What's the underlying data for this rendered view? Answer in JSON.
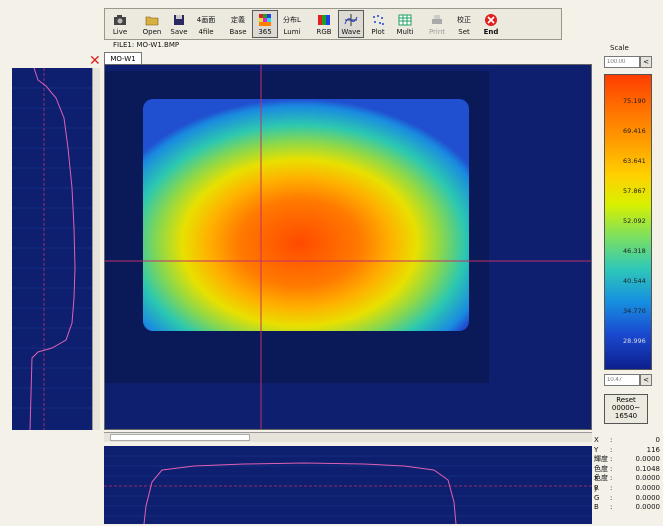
{
  "toolbar": {
    "buttons": [
      {
        "label": "Live",
        "icon": "camera-icon"
      },
      {
        "label": "Open",
        "icon": "folder-open-icon"
      },
      {
        "label": "Save",
        "icon": "floppy-disk-icon"
      },
      {
        "label_top": "4画面",
        "label": "4file",
        "icon": "four-screen-icon"
      },
      {
        "label_top": "定義",
        "label": "Base",
        "icon": "base-icon"
      },
      {
        "label": "365",
        "icon": "color-grid-icon"
      },
      {
        "label_top": "分布L",
        "label": "Lumi",
        "icon": "luminance-icon"
      },
      {
        "label": "RGB",
        "icon": "rgb-icon"
      },
      {
        "label": "Wave",
        "icon": "wave-icon"
      },
      {
        "label": "Plot",
        "icon": "plot-icon"
      },
      {
        "label": "Multi",
        "icon": "multi-icon"
      },
      {
        "label": "Print",
        "icon": "printer-icon"
      },
      {
        "label_top": "校正",
        "label": "Set",
        "icon": "calibrate-icon"
      },
      {
        "label": "End",
        "icon": "end-icon"
      }
    ]
  },
  "file_label": "FILE1: MO-W1.BMP",
  "tab_label": "MO-W1",
  "scale": {
    "title": "Scale",
    "top_input_placeholder": "100.00",
    "bottom_input_placeholder": "10.47",
    "ticks": [
      "75.190",
      "69.416",
      "63.641",
      "57.867",
      "52.092",
      "46.318",
      "40.544",
      "34.770",
      "28.996"
    ],
    "colors": {
      "high": "#ff3c00",
      "mid": "#ffd000",
      "low": "#0d1f8e"
    }
  },
  "reset_button": {
    "line1": "Reset",
    "line2": "00000~",
    "line3": "16540"
  },
  "readout": [
    {
      "label": "X",
      "value": "0"
    },
    {
      "label": "Y",
      "value": "116"
    },
    {
      "label": "輝度",
      "value": "0.0000"
    },
    {
      "label": "色度x",
      "value": "0.1048"
    },
    {
      "label": "色度y",
      "value": "0.0000"
    },
    {
      "label": "R",
      "value": "0.0000"
    },
    {
      "label": "G",
      "value": "0.0000"
    },
    {
      "label": "B",
      "value": "0.0000"
    }
  ]
}
